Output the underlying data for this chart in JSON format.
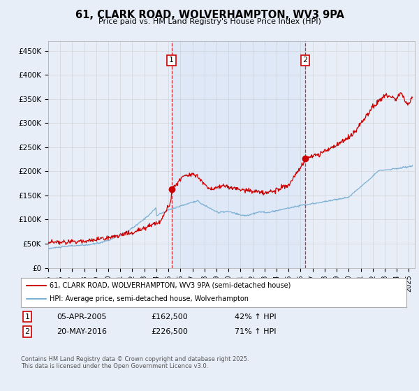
{
  "title": "61, CLARK ROAD, WOLVERHAMPTON, WV3 9PA",
  "subtitle": "Price paid vs. HM Land Registry's House Price Index (HPI)",
  "ylabel_ticks": [
    "£0",
    "£50K",
    "£100K",
    "£150K",
    "£200K",
    "£250K",
    "£300K",
    "£350K",
    "£400K",
    "£450K"
  ],
  "ylim": [
    0,
    470000
  ],
  "xlim_start": 1995.0,
  "xlim_end": 2025.5,
  "red_color": "#cc0000",
  "blue_color": "#7ab0d4",
  "marker1_date": 2005.26,
  "marker1_price": 162500,
  "marker2_date": 2016.38,
  "marker2_price": 226500,
  "vline1_x": 2005.26,
  "vline2_x": 2016.38,
  "legend_label_red": "61, CLARK ROAD, WOLVERHAMPTON, WV3 9PA (semi-detached house)",
  "legend_label_blue": "HPI: Average price, semi-detached house, Wolverhampton",
  "table_row1": [
    "1",
    "05-APR-2005",
    "£162,500",
    "42% ↑ HPI"
  ],
  "table_row2": [
    "2",
    "20-MAY-2016",
    "£226,500",
    "71% ↑ HPI"
  ],
  "footnote": "Contains HM Land Registry data © Crown copyright and database right 2025.\nThis data is licensed under the Open Government Licence v3.0.",
  "background_color": "#e8eef8",
  "grid_color": "#cccccc"
}
